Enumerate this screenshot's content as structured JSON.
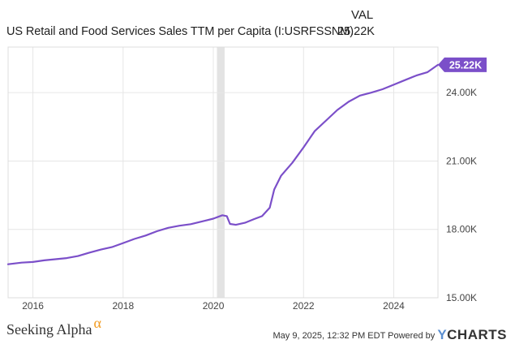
{
  "header": {
    "val_label": "VAL",
    "series_name": "US Retail and Food Services Sales TTM per Capita (I:USRFSSNM)",
    "latest_value": "25.22K"
  },
  "footer": {
    "logo_text": "Seeking Alpha",
    "logo_alpha": "α",
    "timestamp": "May 9, 2025, 12:32 PM EDT",
    "powered_by": "Powered by",
    "brand_y": "Y",
    "brand_rest": "CHARTS"
  },
  "colors": {
    "line": "#7b4fc9",
    "recession": "#e3e3e3",
    "grid": "#e6e6e6",
    "axis_text": "#444444"
  },
  "chart_data": {
    "type": "line",
    "title": "US Retail and Food Services Sales TTM per Capita (I:USRFSSNM)",
    "xlabel": "",
    "ylabel": "",
    "xlim": [
      2015.45,
      2024.98
    ],
    "ylim": [
      15000,
      26000
    ],
    "x_ticks": [
      2016,
      2018,
      2020,
      2022,
      2024
    ],
    "x_tick_labels": [
      "2016",
      "2018",
      "2020",
      "2022",
      "2024"
    ],
    "y_ticks": [
      15000,
      18000,
      21000,
      24000
    ],
    "y_tick_labels": [
      "15.00K",
      "18.00K",
      "21.00K",
      "24.00K"
    ],
    "grid": true,
    "recession_band": [
      2020.08,
      2020.25
    ],
    "end_label": "25.22K",
    "series": [
      {
        "name": "US Retail and Food Services Sales TTM per Capita",
        "points": [
          [
            2015.45,
            16470
          ],
          [
            2015.75,
            16540
          ],
          [
            2016.0,
            16570
          ],
          [
            2016.25,
            16640
          ],
          [
            2016.5,
            16690
          ],
          [
            2016.75,
            16740
          ],
          [
            2017.0,
            16830
          ],
          [
            2017.25,
            16980
          ],
          [
            2017.5,
            17110
          ],
          [
            2017.75,
            17220
          ],
          [
            2018.0,
            17400
          ],
          [
            2018.25,
            17580
          ],
          [
            2018.5,
            17730
          ],
          [
            2018.75,
            17920
          ],
          [
            2019.0,
            18070
          ],
          [
            2019.25,
            18160
          ],
          [
            2019.5,
            18230
          ],
          [
            2019.75,
            18350
          ],
          [
            2020.0,
            18470
          ],
          [
            2020.2,
            18620
          ],
          [
            2020.3,
            18580
          ],
          [
            2020.37,
            18240
          ],
          [
            2020.5,
            18200
          ],
          [
            2020.7,
            18290
          ],
          [
            2020.9,
            18450
          ],
          [
            2021.08,
            18580
          ],
          [
            2021.25,
            18950
          ],
          [
            2021.35,
            19750
          ],
          [
            2021.5,
            20350
          ],
          [
            2021.75,
            20920
          ],
          [
            2022.0,
            21600
          ],
          [
            2022.25,
            22320
          ],
          [
            2022.5,
            22780
          ],
          [
            2022.75,
            23240
          ],
          [
            2023.0,
            23600
          ],
          [
            2023.25,
            23870
          ],
          [
            2023.5,
            24000
          ],
          [
            2023.75,
            24150
          ],
          [
            2024.0,
            24350
          ],
          [
            2024.25,
            24550
          ],
          [
            2024.5,
            24750
          ],
          [
            2024.75,
            24900
          ],
          [
            2024.98,
            25220
          ]
        ]
      }
    ]
  }
}
